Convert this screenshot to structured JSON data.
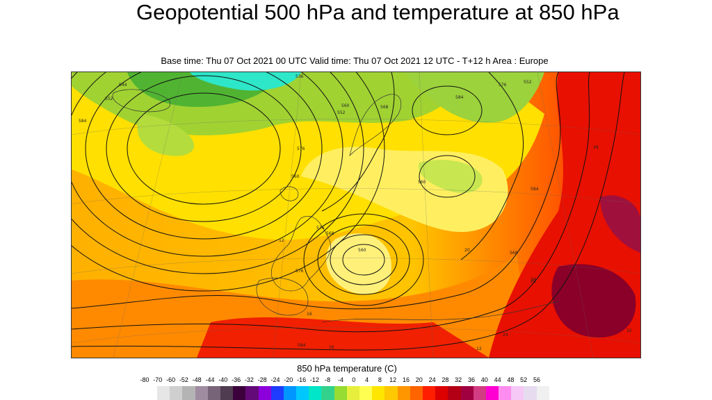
{
  "header": {
    "title": "Geopotential 500 hPa and temperature at 850 hPa",
    "subtitle": "Base time: Thu 07 Oct 2021 00 UTC Valid time: Thu 07 Oct 2021 12 UTC - T+12 h Area : Europe"
  },
  "legend": {
    "title": "850 hPa temperature (C)",
    "ticks": [
      "-80",
      "-70",
      "-60",
      "-52",
      "-48",
      "-44",
      "-40",
      "-36",
      "-32",
      "-28",
      "-24",
      "-20",
      "-16",
      "-12",
      "-8",
      "-4",
      "0",
      "4",
      "8",
      "12",
      "16",
      "20",
      "24",
      "28",
      "32",
      "36",
      "40",
      "44",
      "48",
      "52",
      "56"
    ],
    "colors": [
      "#e6e6e6",
      "#cfcfcf",
      "#b4b4b4",
      "#a08ca0",
      "#786478",
      "#503c50",
      "#3c003c",
      "#640a78",
      "#8c00dc",
      "#1e3cff",
      "#0096ff",
      "#00c8ff",
      "#00e6c8",
      "#32d28c",
      "#96dc32",
      "#e6f03c",
      "#ffff50",
      "#ffe600",
      "#ffc800",
      "#ff9600",
      "#ff6400",
      "#ff1e00",
      "#dc0000",
      "#b40014",
      "#a00040",
      "#d23c82",
      "#ff00d2",
      "#ff8cf0",
      "#f5c8f5",
      "#e6dcf0",
      "#f0f0f0"
    ]
  },
  "map": {
    "contour_labels": [
      "536",
      "552",
      "544",
      "560",
      "568",
      "576",
      "584",
      "560",
      "584",
      "576",
      "552",
      "568",
      "560",
      "576",
      "584",
      "552",
      "568",
      "560",
      "576",
      "584"
    ],
    "point_labels": [
      "16",
      "12",
      "24",
      "28",
      "20",
      "16",
      "12",
      "24",
      "28",
      "32"
    ]
  }
}
